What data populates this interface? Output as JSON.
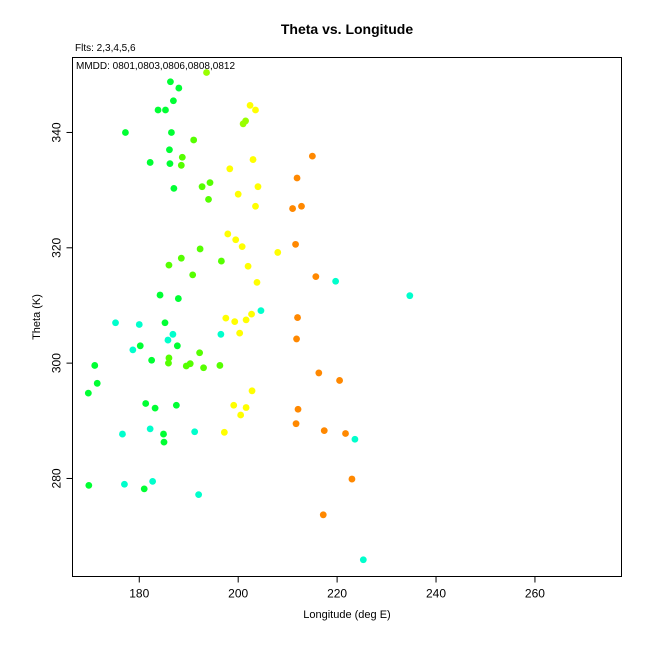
{
  "chart_data": {
    "type": "scatter",
    "title": "Theta vs. Longitude",
    "subtitle_fits": "Flts: 2,3,4,5,6",
    "subtitle_dates": "MMDD: 0801,0803,0806,0808,0812",
    "xlabel": "Longitude (deg E)",
    "ylabel": "Theta (K)",
    "xlim": [
      166.5,
      277.5
    ],
    "ylim": [
      263,
      353
    ],
    "xticks": [
      180,
      200,
      220,
      240,
      260
    ],
    "yticks": [
      280,
      300,
      320,
      340
    ],
    "grid": false,
    "series": [
      {
        "color": "#00ff33",
        "points": [
          [
            169.7,
            294.8
          ],
          [
            169.8,
            278.8
          ],
          [
            171.0,
            299.6
          ],
          [
            171.5,
            296.5
          ],
          [
            177.2,
            340.0
          ],
          [
            180.2,
            303.0
          ],
          [
            181.0,
            278.2
          ],
          [
            181.3,
            293.0
          ],
          [
            182.2,
            334.8
          ],
          [
            182.5,
            300.5
          ],
          [
            183.2,
            292.2
          ],
          [
            183.8,
            343.9
          ],
          [
            184.2,
            311.8
          ],
          [
            184.9,
            287.7
          ],
          [
            185.0,
            286.3
          ],
          [
            185.2,
            307.0
          ],
          [
            185.3,
            343.9
          ],
          [
            186.1,
            337.0
          ],
          [
            186.2,
            334.6
          ],
          [
            186.3,
            348.8
          ],
          [
            186.5,
            340.0
          ],
          [
            186.9,
            345.5
          ],
          [
            187.0,
            330.3
          ],
          [
            187.5,
            292.7
          ],
          [
            187.7,
            303.0
          ],
          [
            187.9,
            311.2
          ],
          [
            188.0,
            347.7
          ]
        ]
      },
      {
        "color": "#55ff00",
        "points": [
          [
            185.9,
            300.0
          ],
          [
            186.0,
            300.9
          ],
          [
            186.0,
            317.0
          ],
          [
            188.5,
            334.3
          ],
          [
            188.5,
            318.2
          ],
          [
            188.7,
            335.7
          ],
          [
            189.5,
            299.5
          ],
          [
            190.3,
            299.9
          ],
          [
            190.8,
            315.3
          ],
          [
            191.0,
            338.7
          ],
          [
            192.2,
            301.8
          ],
          [
            192.3,
            319.8
          ],
          [
            192.7,
            330.6
          ],
          [
            193.0,
            299.2
          ],
          [
            194.0,
            328.4
          ],
          [
            194.3,
            331.3
          ],
          [
            196.3,
            299.6
          ],
          [
            196.6,
            317.7
          ]
        ]
      },
      {
        "color": "#99ff00",
        "points": [
          [
            193.6,
            350.4
          ],
          [
            201.0,
            341.5
          ],
          [
            201.5,
            342.0
          ]
        ]
      },
      {
        "color": "#ffff00",
        "points": [
          [
            197.2,
            288.0
          ],
          [
            197.5,
            307.8
          ],
          [
            197.9,
            322.4
          ],
          [
            198.3,
            333.7
          ],
          [
            199.1,
            292.7
          ],
          [
            199.3,
            307.2
          ],
          [
            199.5,
            321.4
          ],
          [
            200.0,
            329.3
          ],
          [
            200.3,
            305.2
          ],
          [
            200.5,
            291.0
          ],
          [
            200.8,
            320.2
          ],
          [
            201.6,
            292.3
          ],
          [
            201.6,
            307.5
          ],
          [
            202.0,
            316.8
          ],
          [
            202.4,
            344.7
          ],
          [
            202.7,
            308.5
          ],
          [
            202.8,
            295.2
          ],
          [
            203.0,
            335.3
          ],
          [
            203.5,
            327.2
          ],
          [
            203.5,
            343.9
          ],
          [
            203.8,
            314.0
          ],
          [
            204.0,
            330.6
          ],
          [
            208.0,
            319.2
          ]
        ]
      },
      {
        "color": "#ff8800",
        "points": [
          [
            211.0,
            326.8
          ],
          [
            211.6,
            320.6
          ],
          [
            211.7,
            289.5
          ],
          [
            211.8,
            304.2
          ],
          [
            211.9,
            332.1
          ],
          [
            212.0,
            307.9
          ],
          [
            212.1,
            292.0
          ],
          [
            212.8,
            327.2
          ],
          [
            215.0,
            335.9
          ],
          [
            215.7,
            315.0
          ],
          [
            216.3,
            298.3
          ],
          [
            217.2,
            273.7
          ],
          [
            217.4,
            288.3
          ],
          [
            220.5,
            297.0
          ],
          [
            221.7,
            287.8
          ],
          [
            223.0,
            279.9
          ]
        ]
      },
      {
        "color": "#00ffcc",
        "points": [
          [
            175.2,
            307.0
          ],
          [
            176.6,
            287.7
          ],
          [
            177.0,
            279.0
          ],
          [
            178.7,
            302.3
          ],
          [
            180.0,
            306.7
          ],
          [
            182.2,
            288.6
          ],
          [
            182.7,
            279.5
          ],
          [
            185.8,
            304.0
          ],
          [
            186.8,
            305.0
          ],
          [
            191.2,
            288.1
          ],
          [
            192.0,
            277.2
          ],
          [
            196.5,
            305.0
          ],
          [
            204.6,
            309.1
          ],
          [
            219.7,
            314.2
          ],
          [
            223.6,
            286.8
          ],
          [
            225.3,
            265.9
          ],
          [
            234.7,
            311.7
          ]
        ]
      }
    ]
  }
}
